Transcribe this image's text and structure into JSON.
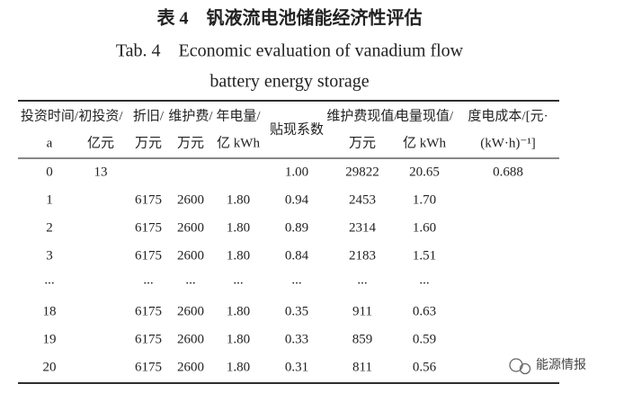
{
  "title": {
    "cn": "表 4　钒液流电池储能经济性评估",
    "en_line1": "Tab. 4　Economic evaluation of vanadium flow",
    "en_line2": "battery energy storage"
  },
  "table": {
    "header": [
      [
        "投资时间/",
        "a"
      ],
      [
        "初投资/",
        "亿元"
      ],
      [
        "折旧/",
        "万元"
      ],
      [
        "维护费/",
        "万元"
      ],
      [
        "年电量/",
        "亿 kWh"
      ],
      [
        "贴现系数"
      ],
      [
        "维护费现值/",
        "万元"
      ],
      [
        "电量现值/",
        "亿 kWh"
      ],
      [
        "度电成本/[元·",
        "(kW·h)⁻¹]"
      ]
    ],
    "rows": [
      [
        "0",
        "13",
        null,
        null,
        null,
        "1.00",
        "29822",
        "20.65",
        "0.688"
      ],
      [
        "1",
        null,
        "6175",
        "2600",
        "1.80",
        "0.94",
        "2453",
        "1.70",
        null
      ],
      [
        "2",
        null,
        "6175",
        "2600",
        "1.80",
        "0.89",
        "2314",
        "1.60",
        null
      ],
      [
        "3",
        null,
        "6175",
        "2600",
        "1.80",
        "0.84",
        "2183",
        "1.51",
        null
      ],
      [
        "...",
        null,
        "...",
        "...",
        "...",
        "...",
        "...",
        "...",
        null
      ],
      [
        "18",
        null,
        "6175",
        "2600",
        "1.80",
        "0.35",
        "911",
        "0.63",
        null
      ],
      [
        "19",
        null,
        "6175",
        "2600",
        "1.80",
        "0.33",
        "859",
        "0.59",
        null
      ],
      [
        "20",
        null,
        "6175",
        "2600",
        "1.80",
        "0.31",
        "811",
        "0.56",
        null
      ]
    ]
  },
  "watermark": "能源情报"
}
